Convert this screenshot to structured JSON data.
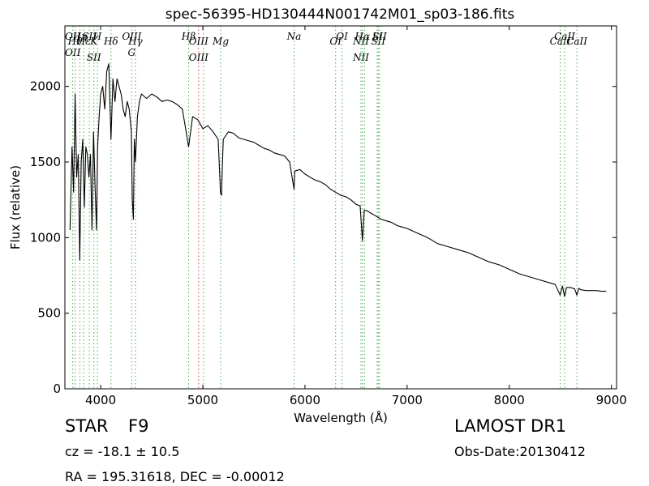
{
  "chart_data": {
    "type": "line",
    "title": "spec-56395-HD130444N001742M01_sp03-186.fits",
    "xlabel": "Wavelength (Å)",
    "ylabel": "Flux (relative)",
    "xlim": [
      3650,
      9050
    ],
    "ylim": [
      0,
      2400
    ],
    "x_ticks": [
      4000,
      5000,
      6000,
      7000,
      8000,
      9000
    ],
    "y_ticks": [
      0,
      500,
      1000,
      1500,
      2000
    ],
    "grid": false,
    "series": [
      {
        "line_color": "#000000",
        "x": [
          3700,
          3720,
          3735,
          3750,
          3765,
          3780,
          3795,
          3810,
          3825,
          3840,
          3855,
          3870,
          3885,
          3900,
          3915,
          3930,
          3945,
          3960,
          3970,
          3985,
          4000,
          4020,
          4040,
          4060,
          4080,
          4101,
          4120,
          4140,
          4160,
          4180,
          4200,
          4220,
          4240,
          4260,
          4280,
          4300,
          4310,
          4320,
          4330,
          4340,
          4360,
          4380,
          4400,
          4450,
          4500,
          4550,
          4600,
          4650,
          4700,
          4750,
          4800,
          4861,
          4900,
          4950,
          5000,
          5050,
          5100,
          5150,
          5167,
          5172,
          5183,
          5200,
          5250,
          5300,
          5350,
          5400,
          5450,
          5500,
          5550,
          5600,
          5650,
          5700,
          5750,
          5800,
          5850,
          5893,
          5900,
          5950,
          6000,
          6050,
          6100,
          6150,
          6200,
          6250,
          6300,
          6350,
          6400,
          6450,
          6500,
          6540,
          6563,
          6580,
          6600,
          6650,
          6700,
          6750,
          6800,
          6850,
          6900,
          6950,
          7000,
          7100,
          7200,
          7300,
          7400,
          7500,
          7600,
          7700,
          7800,
          7900,
          8000,
          8100,
          8200,
          8300,
          8400,
          8450,
          8498,
          8520,
          8542,
          8560,
          8600,
          8640,
          8662,
          8680,
          8700,
          8750,
          8800,
          8850,
          8900,
          8950
        ],
        "values": [
          1050,
          1600,
          1300,
          1950,
          1400,
          1550,
          850,
          1500,
          1650,
          1200,
          1600,
          1550,
          1400,
          1550,
          1050,
          1700,
          1350,
          1050,
          1600,
          1800,
          1950,
          2000,
          1850,
          2100,
          2150,
          1650,
          2050,
          1900,
          2050,
          2000,
          1950,
          1850,
          1800,
          1900,
          1850,
          1700,
          1250,
          1120,
          1650,
          1500,
          1800,
          1900,
          1950,
          1920,
          1950,
          1930,
          1900,
          1910,
          1900,
          1880,
          1850,
          1600,
          1800,
          1780,
          1720,
          1740,
          1700,
          1650,
          1400,
          1300,
          1280,
          1650,
          1700,
          1690,
          1660,
          1650,
          1640,
          1630,
          1610,
          1590,
          1580,
          1560,
          1550,
          1540,
          1500,
          1320,
          1440,
          1450,
          1420,
          1400,
          1380,
          1370,
          1350,
          1320,
          1300,
          1280,
          1270,
          1250,
          1220,
          1210,
          980,
          1180,
          1180,
          1160,
          1140,
          1120,
          1110,
          1100,
          1080,
          1070,
          1060,
          1030,
          1000,
          960,
          940,
          920,
          900,
          870,
          840,
          820,
          790,
          760,
          740,
          720,
          700,
          690,
          620,
          680,
          610,
          670,
          670,
          660,
          620,
          665,
          655,
          650,
          650,
          650,
          645,
          645
        ]
      }
    ],
    "line_markers": [
      {
        "x": 3727,
        "labels": [
          "OII",
          "OII"
        ],
        "color": "#4caf50"
      },
      {
        "x": 3750,
        "labels": [
          "Hθ"
        ],
        "color": "#4caf50"
      },
      {
        "x": 3797,
        "labels": [
          "Hη"
        ],
        "color": "#4caf50"
      },
      {
        "x": 3835,
        "labels": [
          "Hε"
        ],
        "color": "#4caf50"
      },
      {
        "x": 3889,
        "labels": [
          "SII"
        ],
        "color": "#4caf50"
      },
      {
        "x": 3934,
        "labels": [
          "K",
          "SII"
        ],
        "color": "#4caf50"
      },
      {
        "x": 3968,
        "labels": [
          "H"
        ],
        "color": "#4caf50"
      },
      {
        "x": 4101,
        "labels": [
          "Hδ"
        ],
        "color": "#4caf50"
      },
      {
        "x": 4304,
        "labels": [
          "OIII",
          "G"
        ],
        "color": "#4caf50"
      },
      {
        "x": 4340,
        "labels": [
          "Hγ"
        ],
        "color": "#4caf50"
      },
      {
        "x": 4861,
        "labels": [
          "Hβ"
        ],
        "color": "#4caf50"
      },
      {
        "x": 4959,
        "labels": [
          "OIII",
          "OIII"
        ],
        "color": "#e53935"
      },
      {
        "x": 5007,
        "labels": [],
        "color": "#4caf50"
      },
      {
        "x": 5175,
        "labels": [
          "Mg"
        ],
        "color": "#4caf50"
      },
      {
        "x": 5893,
        "labels": [
          "Na"
        ],
        "color": "#4caf50"
      },
      {
        "x": 6300,
        "labels": [
          "OI"
        ],
        "color": "#4caf50"
      },
      {
        "x": 6363,
        "labels": [
          "OI"
        ],
        "color": "#4caf50"
      },
      {
        "x": 6548,
        "labels": [
          "NII",
          "NII"
        ],
        "color": "#4caf50"
      },
      {
        "x": 6563,
        "labels": [
          "Hα"
        ],
        "color": "#4caf50"
      },
      {
        "x": 6583,
        "labels": [],
        "color": "#4caf50"
      },
      {
        "x": 6707,
        "labels": [
          "Li"
        ],
        "color": "#4caf50"
      },
      {
        "x": 6717,
        "labels": [
          "SII"
        ],
        "color": "#4caf50"
      },
      {
        "x": 6731,
        "labels": [
          "SII"
        ],
        "color": "#4caf50"
      },
      {
        "x": 8498,
        "labels": [
          "CaII"
        ],
        "color": "#4caf50"
      },
      {
        "x": 8542,
        "labels": [
          "CaII"
        ],
        "color": "#4caf50"
      },
      {
        "x": 8662,
        "labels": [
          "CaII"
        ],
        "color": "#4caf50"
      }
    ]
  },
  "info": {
    "object_class": "STAR",
    "subclass": "F9",
    "redshift": "cz = -18.1 ± 10.5",
    "coordinates": "RA = 195.31618, DEC = -0.00012",
    "survey": "LAMOST DR1",
    "obs_date": "Obs-Date:20130412"
  }
}
